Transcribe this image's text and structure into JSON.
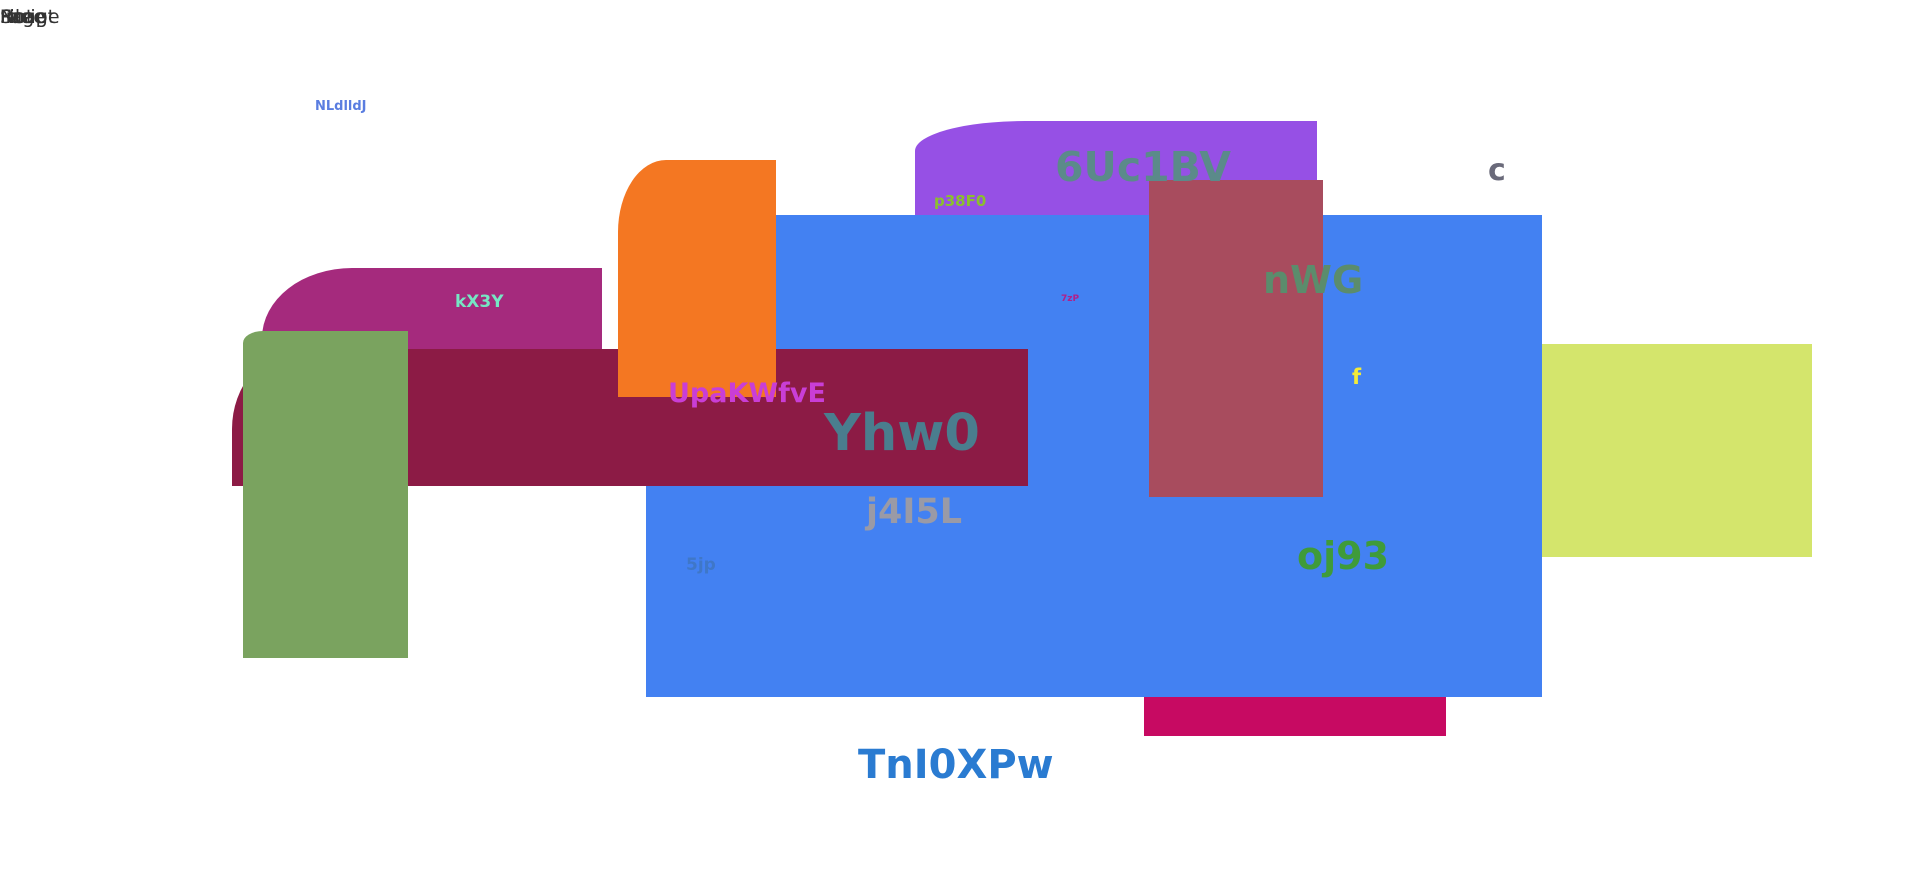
{
  "corner_overlaps": [
    "Script",
    "Page",
    "Image",
    "File",
    "Note"
  ],
  "labels": {
    "a": "NLdlldJ",
    "b": "6Uc1BV",
    "c": "c",
    "d": "p38F0",
    "e": "kX3Y",
    "f": "nWG",
    "g": "7zP",
    "h": "f",
    "i": "UpaKWfvE",
    "j": "Yhw0",
    "k": "j4I5L",
    "l": "oj93",
    "m": "5jp",
    "n": "TnI0XPw"
  },
  "colors": {
    "blue": "#4381f2",
    "purple": "#9650e5",
    "orange": "#f47722",
    "magenta": "#a52a7d",
    "maroon": "#8c1b45",
    "green": "#7aa35f",
    "rose": "#a84c5e",
    "lime": "#d4e56c",
    "pink": "#c70a62"
  }
}
